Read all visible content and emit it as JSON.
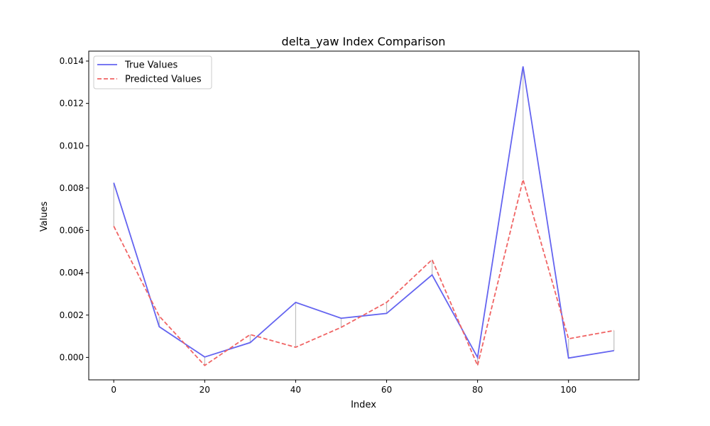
{
  "chart_data": {
    "type": "line",
    "title": "delta_yaw Index Comparison",
    "xlabel": "Index",
    "ylabel": "Values",
    "x": [
      0,
      10,
      20,
      30,
      40,
      50,
      60,
      70,
      80,
      90,
      100,
      110
    ],
    "series": [
      {
        "name": "True Values",
        "color": "#6464f0",
        "style": "solid",
        "values": [
          0.00825,
          0.00145,
          2e-05,
          0.0007,
          0.0026,
          0.00185,
          0.00208,
          0.0039,
          0.0,
          0.01375,
          -3e-05,
          0.00032
        ]
      },
      {
        "name": "Predicted Values",
        "color": "#f06464",
        "style": "dashed",
        "values": [
          0.0062,
          0.00195,
          -0.00038,
          0.00108,
          0.00048,
          0.00142,
          0.0026,
          0.00462,
          -0.00038,
          0.0084,
          0.00088,
          0.00127
        ]
      }
    ],
    "error_lines_color": "#bfbfbf",
    "xlim": [
      -5.5,
      115.5
    ],
    "ylim": [
      -0.00106,
      0.01447
    ],
    "xticks": [
      0,
      20,
      40,
      60,
      80,
      100
    ],
    "xtick_labels": [
      "0",
      "20",
      "40",
      "60",
      "80",
      "100"
    ],
    "yticks": [
      0.0,
      0.002,
      0.004,
      0.006,
      0.008,
      0.01,
      0.012,
      0.014
    ],
    "ytick_labels": [
      "0.000",
      "0.002",
      "0.004",
      "0.006",
      "0.008",
      "0.010",
      "0.012",
      "0.014"
    ],
    "legend_position": "top-left",
    "grid": false
  }
}
